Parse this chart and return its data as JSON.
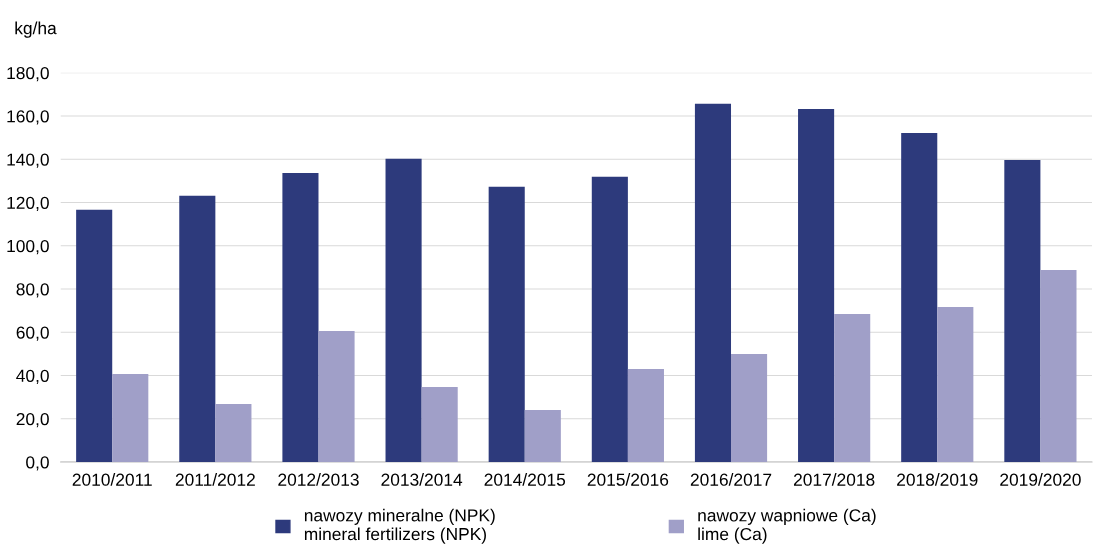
{
  "chart_data": {
    "type": "bar",
    "ylabel": "kg/ha",
    "categories": [
      "2010/2011",
      "2011/2012",
      "2012/2013",
      "2013/2014",
      "2014/2015",
      "2015/2016",
      "2016/2017",
      "2017/2018",
      "2018/2019",
      "2019/2020"
    ],
    "series": [
      {
        "name": "nawozy mineralne (NPK)\nmineral fertilizers (NPK)",
        "color": "#2d3a7c",
        "values": [
          116.7,
          123.1,
          133.7,
          140.2,
          127.3,
          131.9,
          165.7,
          163.3,
          152.2,
          139.7
        ]
      },
      {
        "name": "nawozy wapniowe (Ca)\nlime (Ca)",
        "color": "#a09fc8",
        "values": [
          40.7,
          26.8,
          60.6,
          34.7,
          24.1,
          43.0,
          50.0,
          68.5,
          71.7,
          88.8
        ]
      }
    ],
    "ylim": [
      0,
      180
    ],
    "yticks": [
      {
        "value": 0,
        "label": "0,0"
      },
      {
        "value": 20,
        "label": "20,0"
      },
      {
        "value": 40,
        "label": "40,0"
      },
      {
        "value": 60,
        "label": "60,0"
      },
      {
        "value": 80,
        "label": "80,0"
      },
      {
        "value": 100,
        "label": "100,0"
      },
      {
        "value": 120,
        "label": "120,0"
      },
      {
        "value": 140,
        "label": "140,0"
      },
      {
        "value": 160,
        "label": "160,0"
      },
      {
        "value": 180,
        "label": "180,0"
      }
    ],
    "grid": "y",
    "legend": "bottom"
  }
}
